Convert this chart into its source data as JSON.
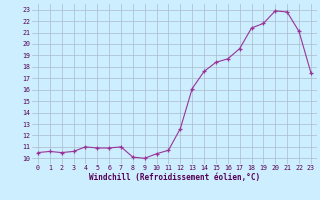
{
  "hours": [
    0,
    1,
    2,
    3,
    4,
    5,
    6,
    7,
    8,
    9,
    10,
    11,
    12,
    13,
    14,
    15,
    16,
    17,
    18,
    19,
    20,
    21,
    22,
    23
  ],
  "values": [
    10.5,
    10.6,
    10.5,
    10.6,
    11.0,
    10.9,
    10.9,
    11.0,
    10.1,
    10.0,
    10.4,
    10.7,
    12.6,
    16.1,
    17.6,
    18.4,
    18.7,
    19.6,
    21.4,
    21.8,
    22.9,
    22.8,
    21.1,
    17.5
  ],
  "xlabel": "Windchill (Refroidissement éolien,°C)",
  "ylim": [
    10,
    23
  ],
  "xlim": [
    0,
    23
  ],
  "yticks": [
    10,
    11,
    12,
    13,
    14,
    15,
    16,
    17,
    18,
    19,
    20,
    21,
    22,
    23
  ],
  "xticks": [
    0,
    1,
    2,
    3,
    4,
    5,
    6,
    7,
    8,
    9,
    10,
    11,
    12,
    13,
    14,
    15,
    16,
    17,
    18,
    19,
    20,
    21,
    22,
    23
  ],
  "line_color": "#993399",
  "marker": "+",
  "markersize": 3.5,
  "linewidth": 0.8,
  "bg_color": "#cceeff",
  "grid_color": "#aabbcc",
  "tick_color": "#550055",
  "label_color": "#550055",
  "xlabel_fontsize": 5.5,
  "tick_fontsize": 4.8
}
